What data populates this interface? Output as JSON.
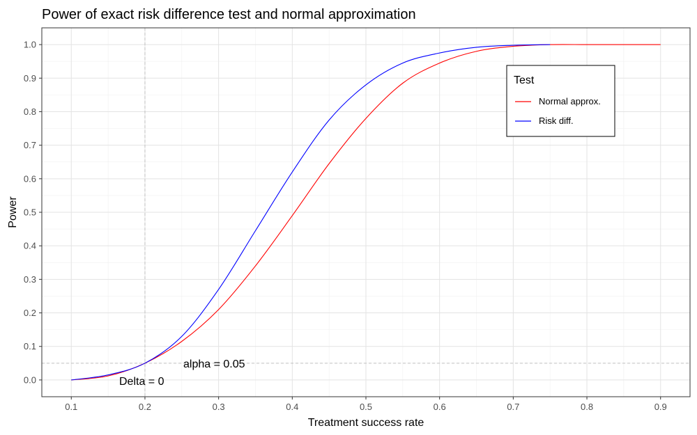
{
  "chart_data": {
    "type": "line",
    "title": "Power of exact risk difference test and normal approximation",
    "xlabel": "Treatment success rate",
    "ylabel": "Power",
    "xlim": [
      0.06,
      0.94
    ],
    "ylim": [
      -0.05,
      1.05
    ],
    "x_ticks": [
      0.1,
      0.2,
      0.3,
      0.4,
      0.5,
      0.6,
      0.7,
      0.8,
      0.9
    ],
    "x_tick_labels": [
      "0.1",
      "0.2",
      "0.3",
      "0.4",
      "0.5",
      "0.6",
      "0.7",
      "0.8",
      "0.9"
    ],
    "y_ticks": [
      0.0,
      0.1,
      0.2,
      0.3,
      0.4,
      0.5,
      0.6,
      0.7,
      0.8,
      0.9,
      1.0
    ],
    "y_tick_labels": [
      "0.0",
      "0.1",
      "0.2",
      "0.3",
      "0.4",
      "0.5",
      "0.6",
      "0.7",
      "0.8",
      "0.9",
      "1.0"
    ],
    "grid": true,
    "legend": {
      "title": "Test",
      "placement": "top-right",
      "entries": [
        "Normal approx.",
        "Risk diff."
      ]
    },
    "series": [
      {
        "name": "Normal approx.",
        "color": "#ff0000",
        "x": [
          0.1,
          0.15,
          0.2,
          0.25,
          0.3,
          0.35,
          0.4,
          0.45,
          0.5,
          0.55,
          0.6,
          0.65,
          0.7,
          0.75,
          0.8,
          0.85,
          0.9
        ],
        "y": [
          0.0,
          0.012,
          0.05,
          0.115,
          0.21,
          0.34,
          0.49,
          0.645,
          0.78,
          0.885,
          0.945,
          0.98,
          0.995,
          1.0,
          1.0,
          1.0,
          1.0
        ]
      },
      {
        "name": "Risk diff.",
        "color": "#0000ff",
        "x": [
          0.1,
          0.15,
          0.2,
          0.25,
          0.3,
          0.35,
          0.4,
          0.45,
          0.5,
          0.55,
          0.6,
          0.65,
          0.7,
          0.75
        ],
        "y": [
          0.0,
          0.015,
          0.05,
          0.13,
          0.27,
          0.445,
          0.62,
          0.775,
          0.88,
          0.945,
          0.975,
          0.992,
          0.998,
          1.0
        ]
      }
    ],
    "reference_lines": [
      {
        "type": "vertical",
        "x": 0.2,
        "color": "#c0c0c0",
        "style": "dashed"
      },
      {
        "type": "horizontal",
        "y": 0.05,
        "color": "#c0c0c0",
        "style": "dashed"
      }
    ],
    "annotations": [
      {
        "text": "alpha = 0.05",
        "x": 0.3,
        "y": 0.05
      },
      {
        "text": "Delta = 0",
        "x": 0.2,
        "y": 0.0
      }
    ]
  }
}
